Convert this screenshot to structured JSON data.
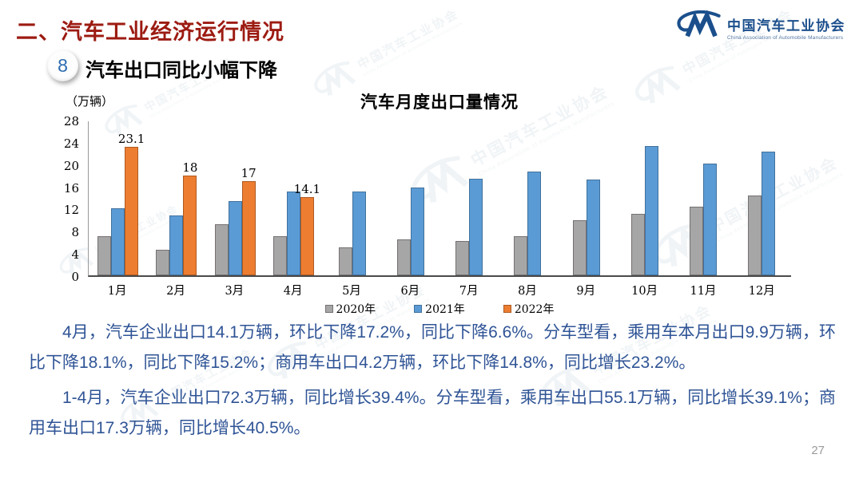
{
  "header": {
    "section_title": "二、汽车工业经济运行情况",
    "badge_number": "8",
    "slide_subtitle": "汽车出口同比小幅下降",
    "logo_cn": "中国汽车工业协会",
    "logo_en": "China Association of Automobile Manufacturers"
  },
  "chart_data": {
    "type": "bar",
    "title": "汽车月度出口量情况",
    "unit_label": "（万辆）",
    "categories": [
      "1月",
      "2月",
      "3月",
      "4月",
      "5月",
      "6月",
      "7月",
      "8月",
      "9月",
      "10月",
      "11月",
      "12月"
    ],
    "series": [
      {
        "name": "2020年",
        "color": "#A6A6A6",
        "border": "#767171",
        "values": [
          7.0,
          4.6,
          9.2,
          7.1,
          5.0,
          6.4,
          6.2,
          7.0,
          9.9,
          11.0,
          12.3,
          14.4
        ]
      },
      {
        "name": "2021年",
        "color": "#5B9BD5",
        "border": "#41719C",
        "values": [
          12.0,
          10.7,
          13.3,
          15.1,
          15.1,
          15.8,
          17.4,
          18.7,
          17.3,
          23.2,
          20.1,
          22.3
        ]
      },
      {
        "name": "2022年",
        "color": "#ED7D31",
        "border": "#AE5A21",
        "values": [
          23.1,
          18,
          17,
          14.1
        ],
        "data_labels": [
          "23.1",
          "18",
          "17",
          "14.1"
        ]
      }
    ],
    "ylim": [
      0,
      28
    ],
    "yticks": [
      0,
      4,
      8,
      12,
      16,
      20,
      24,
      28
    ],
    "grid": false,
    "legend_position": "bottom"
  },
  "body": {
    "paragraph1": "4月，汽车企业出口14.1万辆，环比下降17.2%，同比下降6.6%。分车型看，乘用车本月出口9.9万辆，环比下降18.1%，同比下降15.2%；商用车出口4.2万辆，环比下降14.8%，同比增长23.2%。",
    "paragraph2": "1-4月，汽车企业出口72.3万辆，同比增长39.4%。分车型看，乘用车出口55.1万辆，同比增长39.1%；商用车出口17.3万辆，同比增长40.5%。"
  },
  "footer": {
    "page_number": "27"
  },
  "watermark": {
    "cn": "中国汽车工业协会",
    "en": "China Association of Automobile Manufacturers"
  },
  "colors": {
    "title_red": "#9C1B12",
    "body_blue": "#2F5496",
    "logo_blue": "#1B4F8C",
    "bar_gray": "#A6A6A6",
    "bar_blue": "#5B9BD5",
    "bar_orange": "#ED7D31"
  }
}
